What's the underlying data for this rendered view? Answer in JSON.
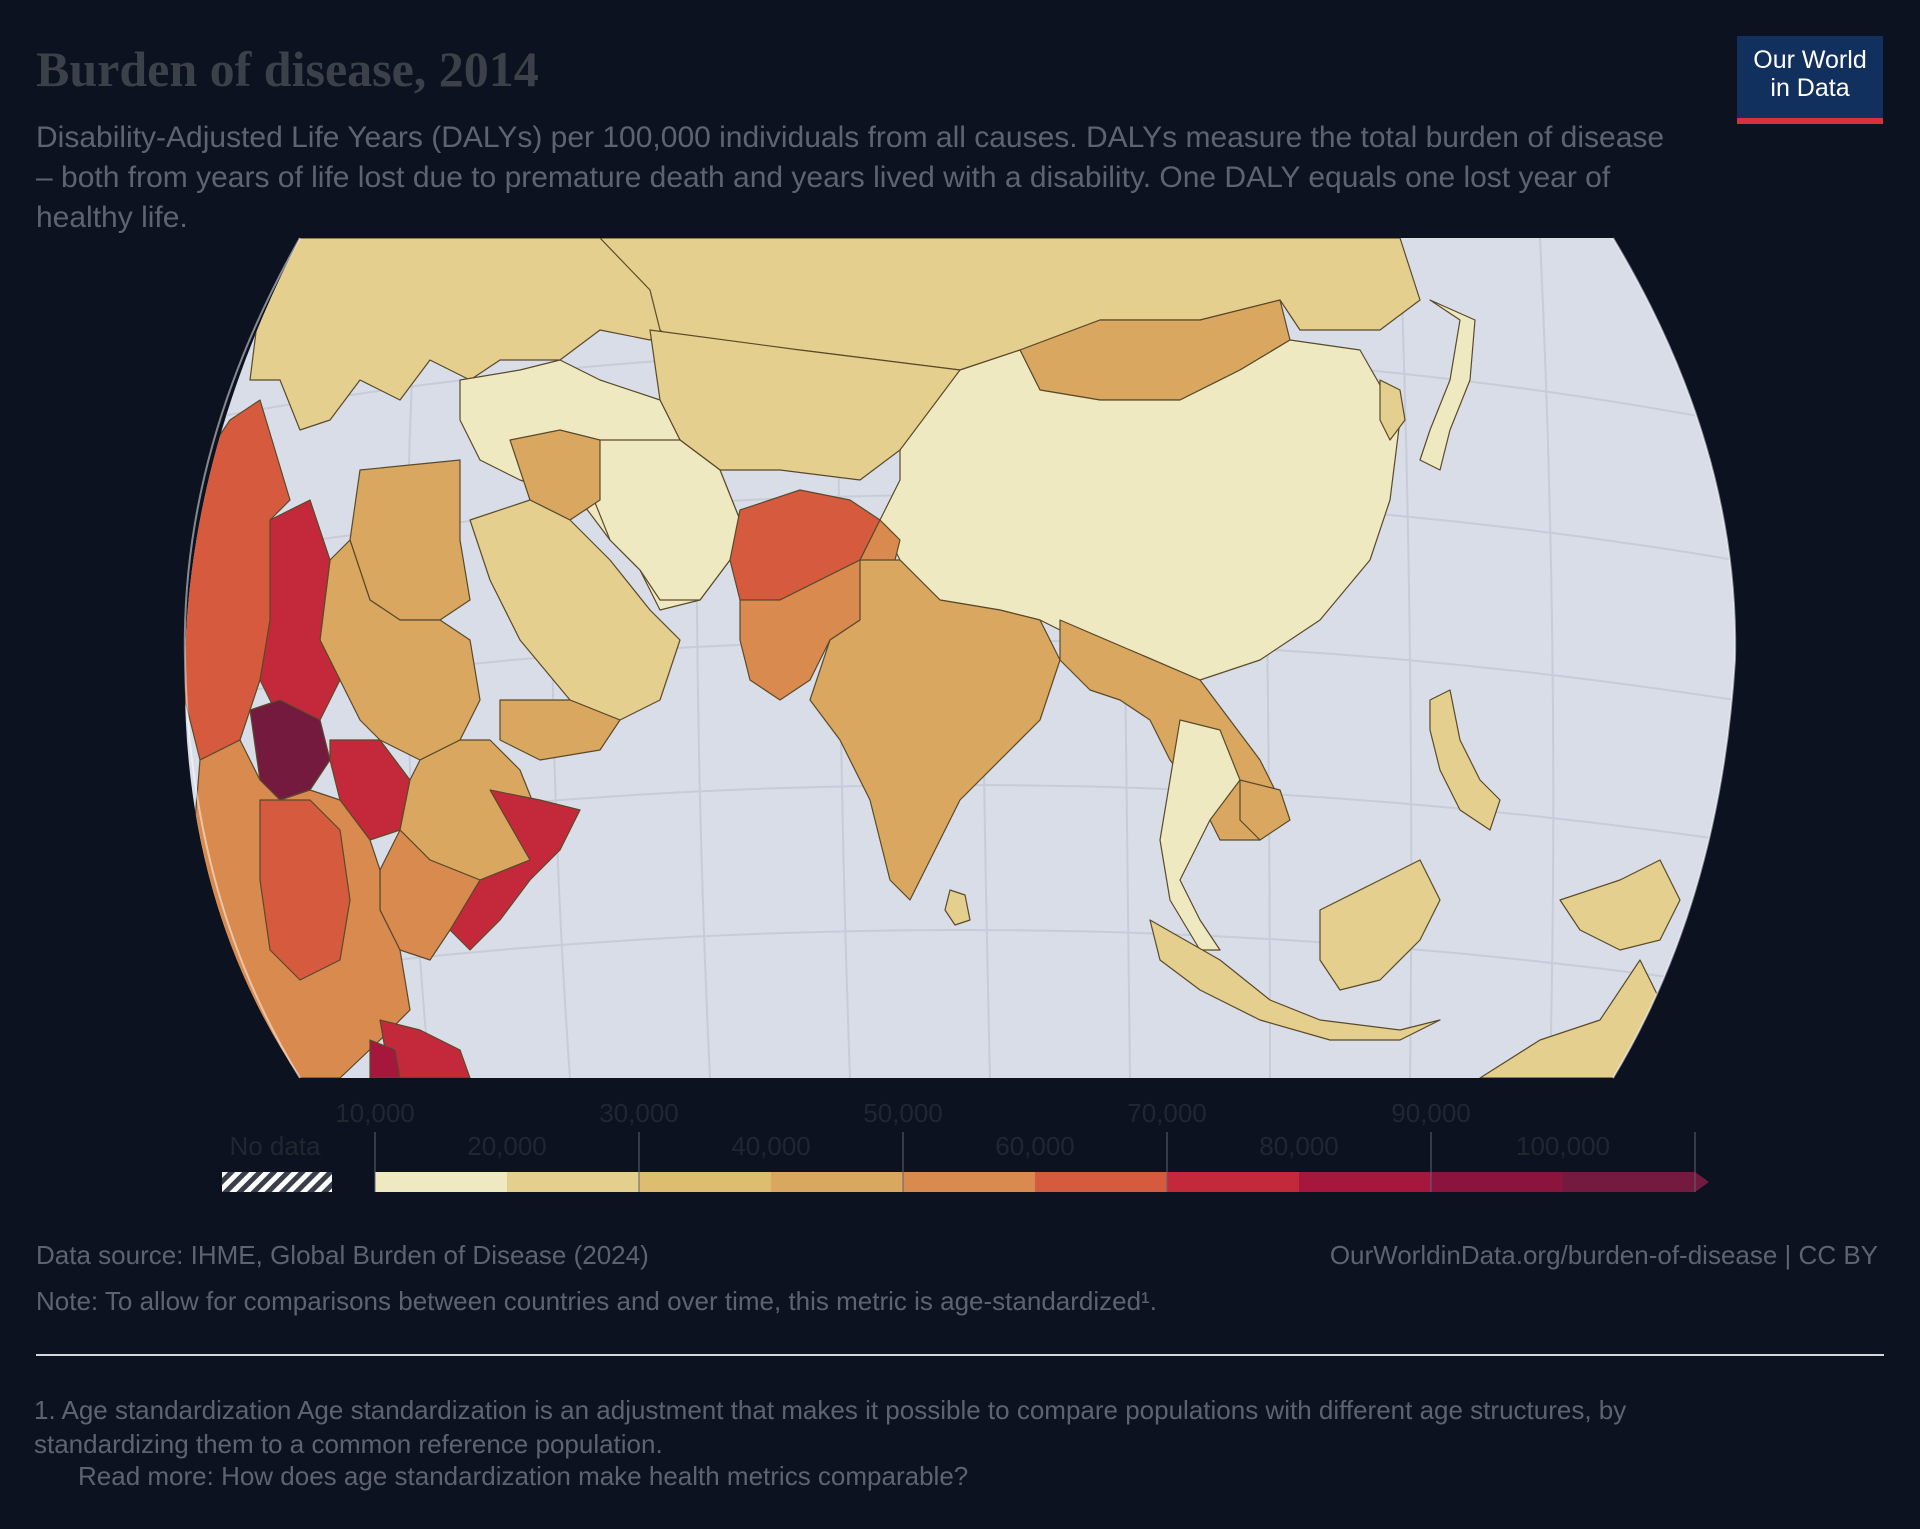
{
  "title": "Burden of disease, 2014",
  "subtitle": "Disability-Adjusted Life Years (DALYs) per 100,000 individuals from all causes. DALYs measure the total burden of disease – both from years of life lost due to premature death and years lived with a disability. One DALY equals one lost year of healthy life.",
  "logo": {
    "line1": "Our World",
    "line2": "in Data"
  },
  "legend": {
    "no_data_label": "No data",
    "upper_ticks": [
      "10,000",
      "30,000",
      "50,000",
      "70,000",
      "90,000"
    ],
    "lower_ticks": [
      "20,000",
      "40,000",
      "60,000",
      "80,000",
      "100,000"
    ],
    "colors": [
      "#efe9c2",
      "#e5cf8e",
      "#ddbd70",
      "#d9a75f",
      "#d98a4f",
      "#d55a3e",
      "#c4293b",
      "#a6173e",
      "#8a143e",
      "#731a3e"
    ]
  },
  "source": "Data source: IHME, Global Burden of Disease (2024)",
  "url": "OurWorldinData.org/burden-of-disease | CC BY",
  "note": "Note: To allow for comparisons between countries and over time, this metric is age-standardized¹.",
  "footnote": "1. Age standardization Age standardization is an adjustment that makes it possible to compare populations with different age structures, by standardizing them to a common reference population.",
  "read_more": "Read more: How does age standardization make health metrics comparable?",
  "map": {
    "ocean": "#d8dde8",
    "graticule": "#c7ccd8",
    "border": "#5a4a2a",
    "regions": [
      {
        "name": "Europe",
        "color": "#e5cf8e"
      },
      {
        "name": "Russia",
        "color": "#e5cf8e"
      },
      {
        "name": "China",
        "color": "#efe9c2"
      },
      {
        "name": "Mongolia",
        "color": "#d9a75f"
      },
      {
        "name": "Afghanistan",
        "color": "#d55a3e"
      },
      {
        "name": "Pakistan",
        "color": "#d98a4f"
      },
      {
        "name": "India",
        "color": "#d9a75f"
      },
      {
        "name": "Iran",
        "color": "#efe9c2"
      },
      {
        "name": "Saudi Arabia",
        "color": "#e5cf8e"
      },
      {
        "name": "Egypt",
        "color": "#d9a75f"
      },
      {
        "name": "Sudan",
        "color": "#d9a75f"
      },
      {
        "name": "Chad",
        "color": "#c4293b"
      },
      {
        "name": "Central African Republic",
        "color": "#731a3e"
      },
      {
        "name": "South Sudan",
        "color": "#c4293b"
      },
      {
        "name": "Ethiopia",
        "color": "#d9a75f"
      },
      {
        "name": "Somalia",
        "color": "#c4293b"
      },
      {
        "name": "West Africa",
        "color": "#d55a3e"
      },
      {
        "name": "Central Africa",
        "color": "#d98a4f"
      },
      {
        "name": "Southeast Asia",
        "color": "#d9a75f"
      },
      {
        "name": "Indonesia",
        "color": "#e5cf8e"
      },
      {
        "name": "Japan",
        "color": "#efe9c2"
      },
      {
        "name": "Australia",
        "color": "#e5cf8e"
      }
    ]
  }
}
